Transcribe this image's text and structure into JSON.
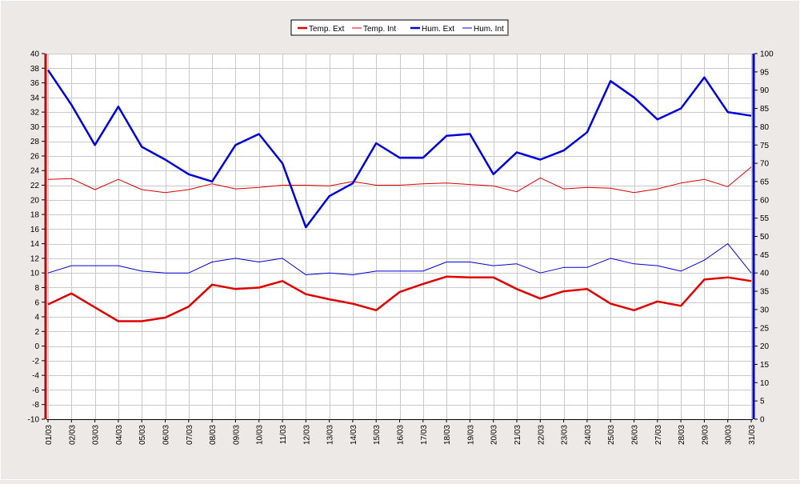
{
  "chart_data": {
    "type": "line",
    "x": [
      "01/03",
      "02/03",
      "03/03",
      "04/03",
      "05/03",
      "06/03",
      "07/03",
      "08/03",
      "09/03",
      "10/03",
      "11/03",
      "12/03",
      "13/03",
      "14/03",
      "15/03",
      "16/03",
      "17/03",
      "18/03",
      "19/03",
      "20/03",
      "21/03",
      "22/03",
      "23/03",
      "24/03",
      "25/03",
      "26/03",
      "27/03",
      "28/03",
      "29/03",
      "30/03",
      "31/03"
    ],
    "y_left": {
      "ylim": [
        -10,
        40
      ],
      "step": 2,
      "axis_color": "#d40000"
    },
    "y_right": {
      "ylim": [
        0,
        100
      ],
      "step": 5,
      "axis_color": "#0000c8"
    },
    "grid": true,
    "legend_position": "top-center",
    "series": [
      {
        "name": "Temp. Ext",
        "axis": "left",
        "color": "#e00000",
        "bold": true,
        "values": [
          5.7,
          7.2,
          5.3,
          3.4,
          3.4,
          3.9,
          5.4,
          8.4,
          7.8,
          8.0,
          8.9,
          7.1,
          6.4,
          5.8,
          4.9,
          7.4,
          8.5,
          9.5,
          9.4,
          9.4,
          7.8,
          6.5,
          7.5,
          7.8,
          5.8,
          4.9,
          6.1,
          5.5,
          9.1,
          9.4,
          8.9
        ]
      },
      {
        "name": "Temp. Int",
        "axis": "left",
        "color": "#e00000",
        "bold": false,
        "values": [
          22.8,
          22.9,
          21.4,
          22.8,
          21.4,
          21.0,
          21.4,
          22.2,
          21.5,
          21.7,
          22.0,
          22.0,
          21.9,
          22.5,
          22.0,
          22.0,
          22.2,
          22.3,
          22.1,
          21.9,
          21.1,
          23.0,
          21.5,
          21.7,
          21.6,
          21.0,
          21.5,
          22.3,
          22.8,
          21.8,
          24.5
        ]
      },
      {
        "name": "Hum. Ext",
        "axis": "right",
        "color": "#0000dd",
        "bold": true,
        "values": [
          95.5,
          86,
          75,
          85.5,
          74.5,
          71,
          67,
          65,
          75,
          78,
          70,
          52.5,
          61,
          64.5,
          75.5,
          71.5,
          71.5,
          77.5,
          78,
          67,
          73,
          71,
          73.5,
          78.5,
          92.5,
          88,
          82,
          85,
          93.5,
          84,
          83
        ]
      },
      {
        "name": "Hum. Int",
        "axis": "right",
        "color": "#0000dd",
        "bold": false,
        "values": [
          40,
          42,
          42,
          42,
          40.5,
          40,
          40,
          43,
          44,
          43,
          44,
          39.5,
          40,
          39.5,
          40.5,
          40.5,
          40.5,
          43,
          43,
          42,
          42.5,
          40,
          41.5,
          41.5,
          44,
          42.5,
          42,
          40.5,
          43.5,
          48,
          40
        ]
      }
    ]
  }
}
